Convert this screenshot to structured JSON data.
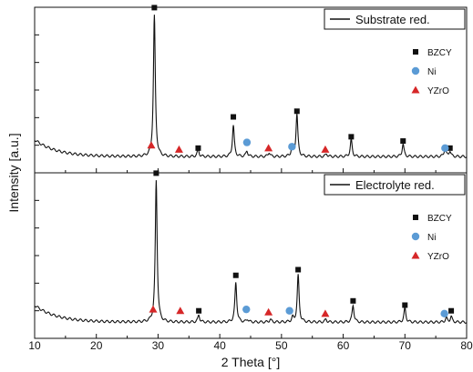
{
  "chart_data": {
    "type": "line",
    "xlabel": "2 Theta [°]",
    "ylabel": "Intensity [a.u.]",
    "xlim": [
      10,
      80
    ],
    "x_ticks": [
      10,
      20,
      30,
      40,
      50,
      60,
      70,
      80
    ],
    "grid": false,
    "panels": [
      {
        "legend_label": "Substrate red.",
        "legend_position": "top-right",
        "series_name": "Substrate red.",
        "baseline": 0.05,
        "peaks": [
          {
            "x": 29.4,
            "height": 1.0
          },
          {
            "x": 36.5,
            "height": 0.05
          },
          {
            "x": 42.2,
            "height": 0.22
          },
          {
            "x": 44.4,
            "height": 0.04
          },
          {
            "x": 48.0,
            "height": 0.03
          },
          {
            "x": 51.7,
            "height": 0.06
          },
          {
            "x": 52.5,
            "height": 0.3
          },
          {
            "x": 57.3,
            "height": 0.02
          },
          {
            "x": 61.3,
            "height": 0.12
          },
          {
            "x": 69.7,
            "height": 0.09
          },
          {
            "x": 76.5,
            "height": 0.06
          },
          {
            "x": 77.3,
            "height": 0.04
          }
        ],
        "markers": [
          {
            "phase": "BZCY",
            "x": [
              29.4,
              36.5,
              42.2,
              52.5,
              61.3,
              69.7,
              77.3
            ],
            "y": [
              1.1,
              0.11,
              0.33,
              0.37,
              0.19,
              0.16,
              0.11
            ]
          },
          {
            "phase": "Ni",
            "x": [
              44.4,
              51.7,
              76.5
            ],
            "y": [
              0.15,
              0.12,
              0.11
            ]
          },
          {
            "phase": "YZrO",
            "x": [
              28.9,
              33.4,
              47.9,
              57.1
            ],
            "y": [
              0.13,
              0.1,
              0.11,
              0.1
            ]
          }
        ]
      },
      {
        "legend_label": "Electrolyte red.",
        "legend_position": "top-right",
        "series_name": "Electrolyte red.",
        "baseline": 0.05,
        "peaks": [
          {
            "x": 29.7,
            "height": 1.0
          },
          {
            "x": 36.6,
            "height": 0.05
          },
          {
            "x": 42.6,
            "height": 0.28
          },
          {
            "x": 44.5,
            "height": 0.02
          },
          {
            "x": 48.2,
            "height": 0.02
          },
          {
            "x": 51.8,
            "height": 0.03
          },
          {
            "x": 52.7,
            "height": 0.33
          },
          {
            "x": 57.2,
            "height": 0.02
          },
          {
            "x": 61.6,
            "height": 0.12
          },
          {
            "x": 70.0,
            "height": 0.1
          },
          {
            "x": 76.7,
            "height": 0.03
          },
          {
            "x": 77.5,
            "height": 0.04
          }
        ],
        "markers": [
          {
            "phase": "BZCY",
            "x": [
              29.7,
              36.6,
              42.6,
              52.7,
              61.6,
              70.0,
              77.5
            ],
            "y": [
              1.1,
              0.13,
              0.38,
              0.42,
              0.2,
              0.17,
              0.13
            ]
          },
          {
            "phase": "Ni",
            "x": [
              44.3,
              51.3,
              76.4
            ],
            "y": [
              0.14,
              0.13,
              0.11
            ]
          },
          {
            "phase": "YZrO",
            "x": [
              29.2,
              33.6,
              47.9,
              57.1
            ],
            "y": [
              0.14,
              0.13,
              0.12,
              0.11
            ]
          }
        ]
      }
    ],
    "phases": [
      {
        "name": "BZCY",
        "symbol": "square",
        "color": "#111111"
      },
      {
        "name": "Ni",
        "symbol": "circle",
        "color": "#5b9bd5"
      },
      {
        "name": "YZrO",
        "symbol": "triangle",
        "color": "#d62728"
      }
    ]
  }
}
